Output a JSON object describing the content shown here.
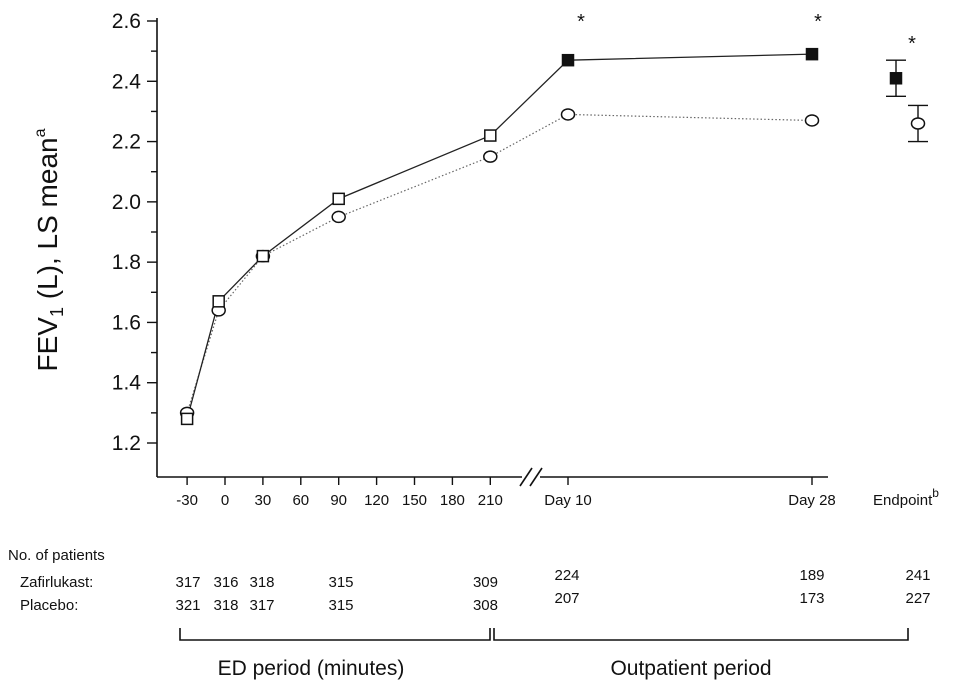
{
  "chart_data": {
    "type": "line",
    "title": "",
    "ylabel_main": "FEV",
    "ylabel_sub": "1",
    "ylabel_rest": " (L), LS mean",
    "ylabel_sup": "a",
    "ylim": [
      1.2,
      2.6
    ],
    "yticks": [
      "1.2",
      "1.4",
      "1.6",
      "1.8",
      "2.0",
      "2.2",
      "2.4",
      "2.6"
    ],
    "ytick_values": [
      1.2,
      1.4,
      1.6,
      1.8,
      2.0,
      2.2,
      2.4,
      2.6
    ],
    "x_minutes_ticks": [
      "-30",
      "0",
      "30",
      "60",
      "90",
      "120",
      "150",
      "180",
      "210"
    ],
    "x_minutes_values": [
      -30,
      0,
      30,
      60,
      90,
      120,
      150,
      180,
      210
    ],
    "x_day_labels": [
      "Day 10",
      "Day 28"
    ],
    "x_endpoint_label": "Endpoint",
    "x_endpoint_sup": "b",
    "series": [
      {
        "name": "Zafirlukast",
        "minutes": [
          -30,
          -5,
          30,
          90,
          210
        ],
        "minute_values": [
          1.28,
          1.67,
          1.82,
          2.01,
          2.22
        ],
        "day_values": [
          2.47,
          2.49
        ],
        "endpoint": 2.41,
        "endpoint_ci": [
          2.35,
          2.47
        ]
      },
      {
        "name": "Placebo",
        "minutes": [
          -30,
          -5,
          30,
          90,
          210
        ],
        "minute_values": [
          1.3,
          1.64,
          1.82,
          1.95,
          2.15
        ],
        "day_values": [
          2.29,
          2.27
        ],
        "endpoint": 2.26,
        "endpoint_ci": [
          2.2,
          2.32
        ]
      }
    ],
    "significance_marker": "*",
    "patients_header": "No. of patients",
    "patients_rows": [
      {
        "label": "Zafirlukast:",
        "counts": [
          "317",
          "316",
          "318",
          "315",
          "309",
          "224",
          "189",
          "241"
        ]
      },
      {
        "label": "Placebo:",
        "counts": [
          "321",
          "318",
          "317",
          "315",
          "308",
          "207",
          "173",
          "227"
        ]
      }
    ],
    "period_labels": [
      "ED period (minutes)",
      "Outpatient period"
    ]
  }
}
